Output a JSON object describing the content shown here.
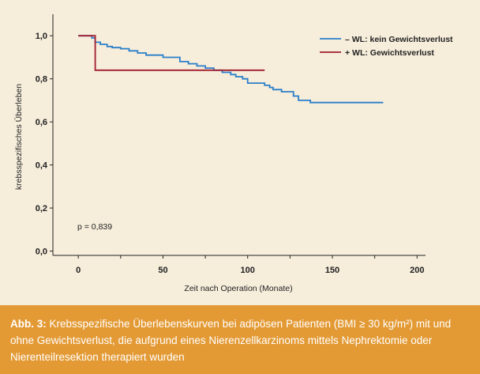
{
  "chart_data": {
    "type": "line",
    "xlabel": "Zeit nach Operation (Monate)",
    "ylabel": "krebsspezifisches Überleben",
    "xlim": [
      -15,
      205
    ],
    "ylim": [
      -0.02,
      1.1
    ],
    "x_ticks": [
      0,
      50,
      100,
      150,
      200
    ],
    "x_tick_labels": [
      "0",
      "50",
      "100",
      "150",
      "200"
    ],
    "y_ticks": [
      0.0,
      0.2,
      0.4,
      0.6,
      0.8,
      1.0
    ],
    "y_tick_labels": [
      "0,0",
      "0,2",
      "0,4",
      "0,6",
      "0,8",
      "1,0"
    ],
    "grid": false,
    "legend_position": "top-right",
    "annotation": "p = 0,839",
    "series": [
      {
        "name": "– WL: kein Gewichtsverlust",
        "color": "#2a7fc9",
        "step": true,
        "points": [
          [
            0,
            1.0
          ],
          [
            7,
            1.0
          ],
          [
            8,
            0.99
          ],
          [
            10,
            0.97
          ],
          [
            13,
            0.96
          ],
          [
            17,
            0.95
          ],
          [
            20,
            0.945
          ],
          [
            25,
            0.94
          ],
          [
            30,
            0.93
          ],
          [
            35,
            0.92
          ],
          [
            40,
            0.91
          ],
          [
            50,
            0.9
          ],
          [
            60,
            0.88
          ],
          [
            65,
            0.87
          ],
          [
            70,
            0.86
          ],
          [
            75,
            0.85
          ],
          [
            80,
            0.84
          ],
          [
            85,
            0.83
          ],
          [
            90,
            0.82
          ],
          [
            93,
            0.81
          ],
          [
            97,
            0.8
          ],
          [
            100,
            0.78
          ],
          [
            110,
            0.77
          ],
          [
            113,
            0.76
          ],
          [
            115,
            0.75
          ],
          [
            120,
            0.74
          ],
          [
            127,
            0.72
          ],
          [
            130,
            0.7
          ],
          [
            137,
            0.69
          ],
          [
            180,
            0.69
          ]
        ]
      },
      {
        "name": "+ WL: Gewichtsverlust",
        "color": "#a01c2c",
        "step": true,
        "points": [
          [
            0,
            1.0
          ],
          [
            10,
            1.0
          ],
          [
            10,
            0.84
          ],
          [
            110,
            0.84
          ]
        ]
      }
    ]
  },
  "caption": {
    "label": "Abb. 3:",
    "text": "Krebsspezifische Überlebenskurven bei adipösen Patienten (BMI ≥ 30 kg/m²) mit und ohne Gewichtsverlust, die aufgrund eines Nierenzellkarzinoms mittels Nephrektomie oder Nierenteilresektion therapiert wurden"
  }
}
